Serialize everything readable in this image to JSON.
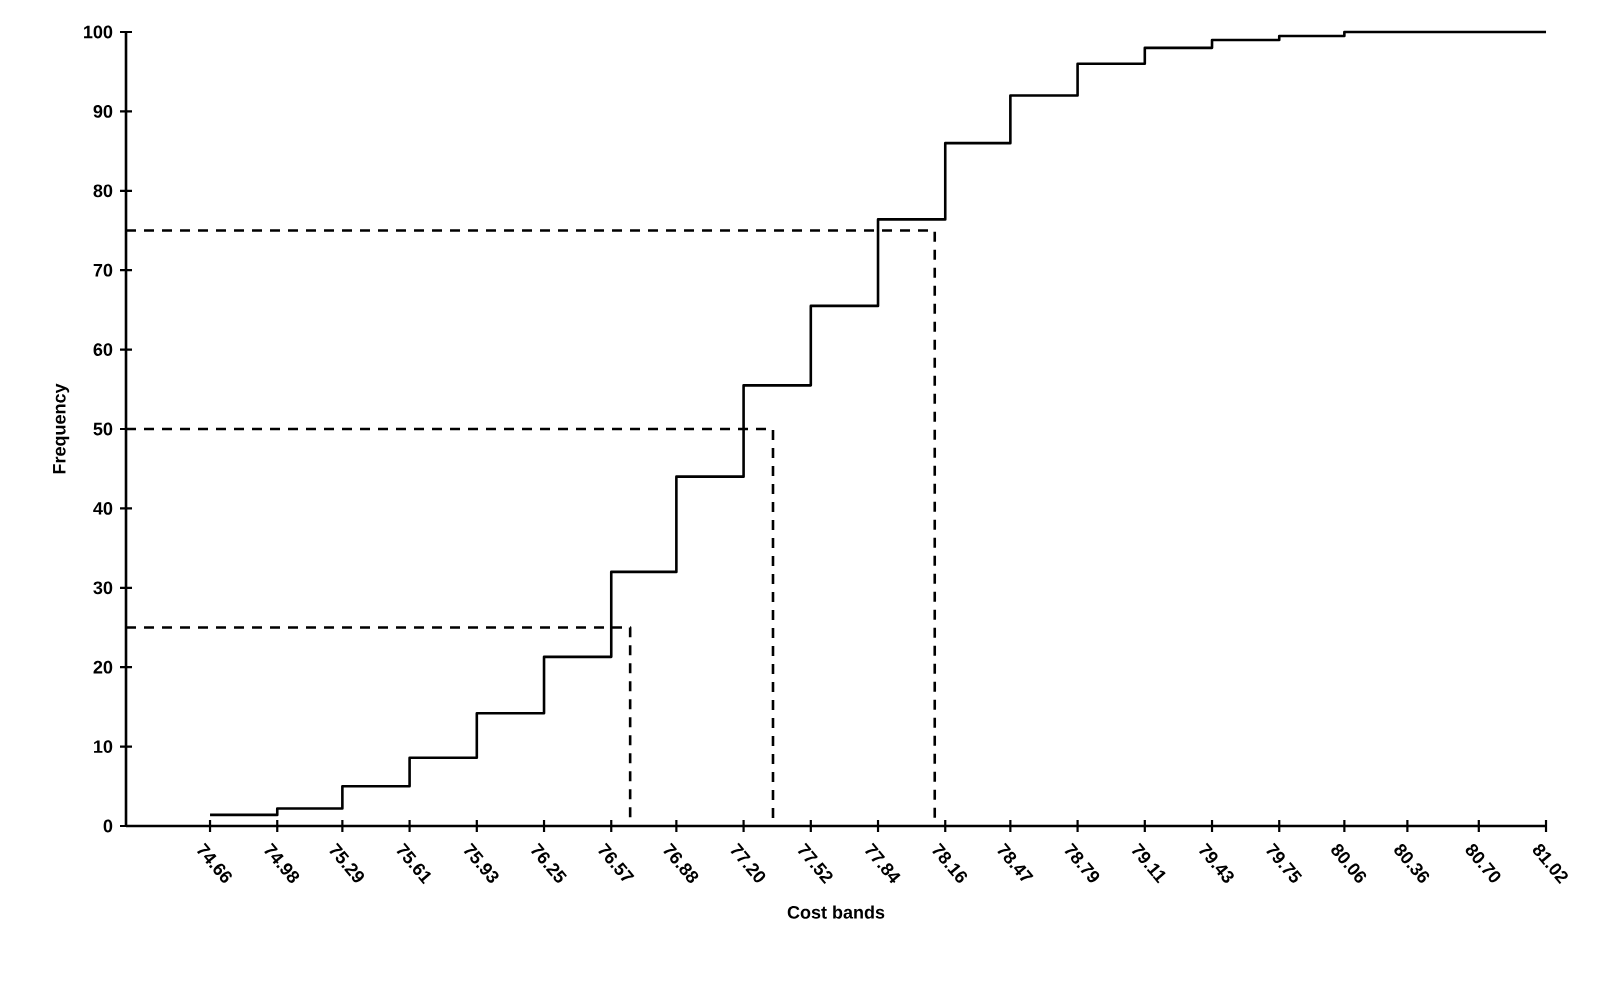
{
  "chart_data": {
    "type": "step",
    "xlabel": "Cost bands",
    "ylabel": "Frequency",
    "xlim": [
      74.26,
      81.02
    ],
    "ylim": [
      0,
      100
    ],
    "xticks": [
      74.66,
      74.98,
      75.29,
      75.61,
      75.93,
      76.25,
      76.57,
      76.88,
      {
        "value": 77.2,
        "label": "77.20"
      },
      77.52,
      77.84,
      78.16,
      78.47,
      78.79,
      79.11,
      79.43,
      79.75,
      80.06,
      80.36,
      {
        "value": 80.7,
        "label": "80.70"
      },
      81.02
    ],
    "yticks": [
      0,
      10,
      20,
      30,
      40,
      50,
      60,
      70,
      80,
      90,
      100
    ],
    "grid": false,
    "marker": "none",
    "series": [
      {
        "color": "#000000",
        "line_style": "solid",
        "x": [
          74.66,
          74.98,
          75.29,
          75.61,
          75.93,
          76.25,
          76.57,
          76.88,
          77.2,
          77.52,
          77.84,
          78.16,
          78.47,
          78.79,
          79.11,
          79.43,
          79.75,
          80.06,
          80.36,
          80.7,
          81.02
        ],
        "values": [
          1.4,
          2.2,
          5,
          8.6,
          14.2,
          21.3,
          32,
          44,
          55.5,
          65.5,
          76.4,
          86,
          92,
          96,
          98,
          99,
          99.5,
          100,
          100,
          100,
          100
        ]
      },
      {
        "type": "line",
        "color": "#000000",
        "line_style": "dashed",
        "x": [
          74.26,
          76.66,
          76.66
        ],
        "values": [
          25,
          25,
          0
        ]
      },
      {
        "type": "line",
        "color": "#000000",
        "line_style": "dashed",
        "x": [
          74.26,
          77.34,
          77.34
        ],
        "values": [
          50,
          50,
          0
        ]
      },
      {
        "type": "line",
        "color": "#000000",
        "line_style": "dashed",
        "x": [
          74.26,
          78.11,
          78.11
        ],
        "values": [
          75,
          75,
          0
        ]
      }
    ]
  }
}
